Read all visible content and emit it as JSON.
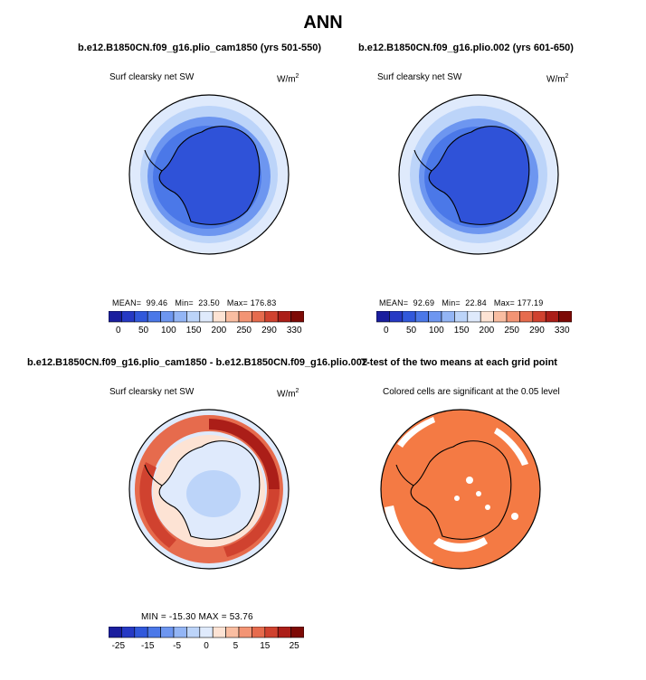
{
  "figure": {
    "title": "ANN"
  },
  "panels": [
    {
      "title": "b.e12.B1850CN.f09_g16.plio_cam1850 (yrs 501-550)",
      "subtitle": "Surf clearsky net SW",
      "units": "W/m",
      "units_sup": "2",
      "stats": {
        "mean_label": "MEAN=",
        "mean": "99.46",
        "min_label": "Min=",
        "min": "23.50",
        "max_label": "Max=",
        "max": "176.83"
      }
    },
    {
      "title": "b.e12.B1850CN.f09_g16.plio.002 (yrs 601-650)",
      "subtitle": "Surf clearsky net SW",
      "units": "W/m",
      "units_sup": "2",
      "stats": {
        "mean_label": "MEAN=",
        "mean": "92.69",
        "min_label": "Min=",
        "min": "22.84",
        "max_label": "Max=",
        "max": "177.19"
      }
    },
    {
      "title": "b.e12.B1850CN.f09_g16.plio_cam1850 - b.e12.B1850CN.f09_g16.plio.002",
      "subtitle": "Surf clearsky net SW",
      "units": "W/m",
      "units_sup": "2",
      "stats_text": "MIN = -15.30 MAX =  53.76"
    },
    {
      "title": "T-test of the two means at each grid point",
      "subtitle": "Colored cells are significant at the 0.05 level"
    }
  ],
  "chart_data": [
    {
      "type": "heatmap",
      "map": "south-polar-stereographic",
      "title": "b.e12.B1850CN.f09_g16.plio_cam1850 (yrs 501-550)",
      "variable": "Surf clearsky net SW",
      "units": "W/m2",
      "mean": 99.46,
      "min": 23.5,
      "max": 176.83,
      "colorbar": {
        "labels": [
          "0",
          "50",
          "100",
          "150",
          "200",
          "250",
          "290",
          "330"
        ],
        "colors": [
          "#1a1e9e",
          "#2639c4",
          "#3158db",
          "#4b78e8",
          "#6d96f0",
          "#93b5f5",
          "#bcd4f9",
          "#dfeafc",
          "#fde3d4",
          "#f9bda1",
          "#f39474",
          "#e66b4d",
          "#d0422f",
          "#ab1e18",
          "#7d0a06"
        ]
      }
    },
    {
      "type": "heatmap",
      "map": "south-polar-stereographic",
      "title": "b.e12.B1850CN.f09_g16.plio.002 (yrs 601-650)",
      "variable": "Surf clearsky net SW",
      "units": "W/m2",
      "mean": 92.69,
      "min": 22.84,
      "max": 177.19,
      "colorbar": {
        "labels": [
          "0",
          "50",
          "100",
          "150",
          "200",
          "250",
          "290",
          "330"
        ],
        "colors": [
          "#1a1e9e",
          "#2639c4",
          "#3158db",
          "#4b78e8",
          "#6d96f0",
          "#93b5f5",
          "#bcd4f9",
          "#dfeafc",
          "#fde3d4",
          "#f9bda1",
          "#f39474",
          "#e66b4d",
          "#d0422f",
          "#ab1e18",
          "#7d0a06"
        ]
      }
    },
    {
      "type": "heatmap",
      "map": "south-polar-stereographic",
      "title": "b.e12.B1850CN.f09_g16.plio_cam1850 - b.e12.B1850CN.f09_g16.plio.002",
      "variable": "Surf clearsky net SW",
      "units": "W/m2",
      "min": -15.3,
      "max": 53.76,
      "colorbar": {
        "labels": [
          "-25",
          "-15",
          "-5",
          "0",
          "5",
          "15",
          "25"
        ],
        "colors": [
          "#1a1e9e",
          "#2639c4",
          "#3158db",
          "#4b78e8",
          "#6d96f0",
          "#93b5f5",
          "#bcd4f9",
          "#dfeafc",
          "#fde3d4",
          "#f9bda1",
          "#f39474",
          "#e66b4d",
          "#d0422f",
          "#ab1e18",
          "#7d0a06"
        ]
      }
    },
    {
      "type": "heatmap",
      "map": "south-polar-stereographic",
      "title": "T-test of the two means at each grid point",
      "significance_level": 0.05,
      "significant_color": "#f47a44"
    }
  ]
}
